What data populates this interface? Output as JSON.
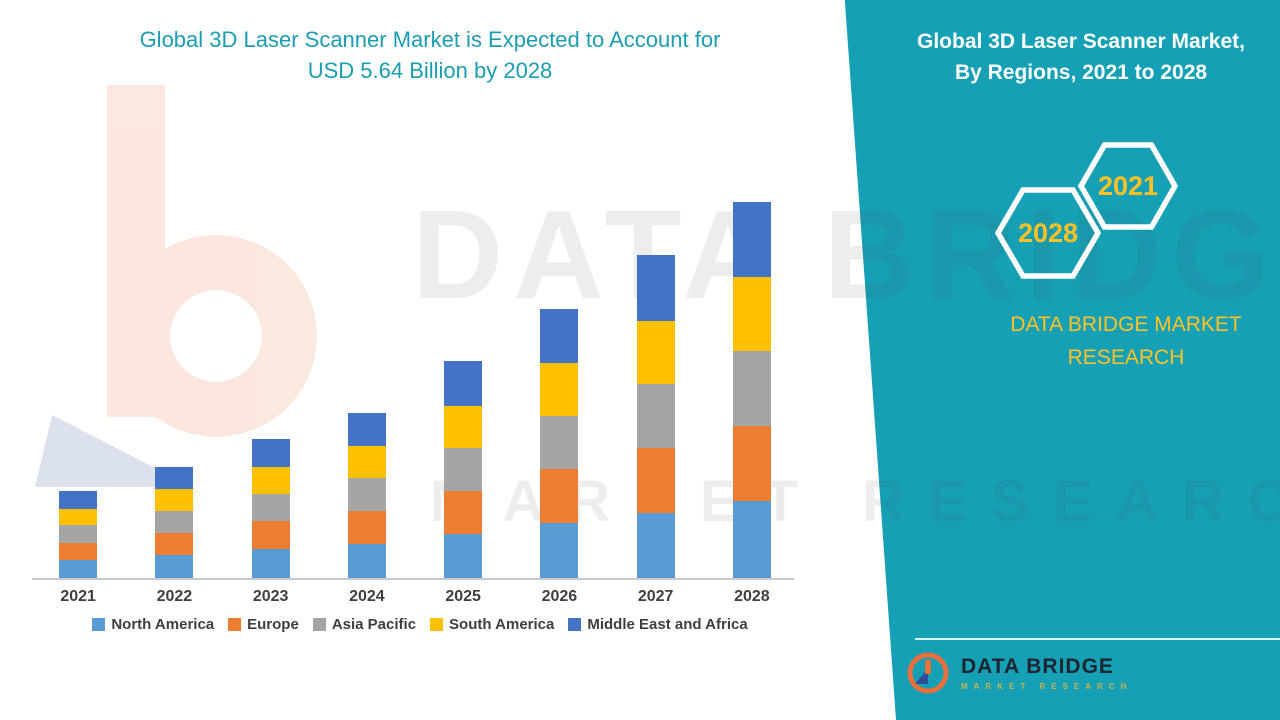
{
  "header": {
    "title_line1": "Global 3D Laser Scanner Market is Expected to Account for",
    "title_line2": "USD 5.64 Billion by 2028"
  },
  "side_panel": {
    "title_line1": "Global 3D Laser Scanner Market,",
    "title_line2": "By Regions, 2021 to 2028",
    "hex_2028": "2028",
    "hex_2021": "2021",
    "brand_line1": "DATA BRIDGE MARKET",
    "brand_line2": "RESEARCH",
    "footer_brand": "DATA BRIDGE",
    "footer_tagline": "MARKET RESEARCH"
  },
  "watermark": {
    "line1": "DATA BRIDGE",
    "line2": "MARKET RESEARCH"
  },
  "colors": {
    "teal": "#15A0B5",
    "accent_yellow": "#FFC226",
    "title_teal": "#1B9DB2",
    "axis_text": "#3F3F3F"
  },
  "chart_data": {
    "type": "bar",
    "stacked": true,
    "title": "Global 3D Laser Scanner Market, By Regions, 2021 to 2028",
    "units": "USD Billion",
    "categories": [
      "2021",
      "2022",
      "2023",
      "2024",
      "2025",
      "2026",
      "2027",
      "2028"
    ],
    "series": [
      {
        "name": "North America",
        "color": "#5B9BD5",
        "values": [
          0.27,
          0.34,
          0.43,
          0.51,
          0.66,
          0.82,
          0.98,
          1.15
        ]
      },
      {
        "name": "Europe",
        "color": "#ED7D31",
        "values": [
          0.26,
          0.34,
          0.42,
          0.5,
          0.65,
          0.81,
          0.97,
          1.13
        ]
      },
      {
        "name": "Asia Pacific",
        "color": "#A5A5A5",
        "values": [
          0.26,
          0.33,
          0.41,
          0.49,
          0.64,
          0.8,
          0.96,
          1.12
        ]
      },
      {
        "name": "South America",
        "color": "#FFC000",
        "values": [
          0.25,
          0.32,
          0.4,
          0.48,
          0.63,
          0.79,
          0.95,
          1.12
        ]
      },
      {
        "name": "Middle East and Africa",
        "color": "#4472C4",
        "values": [
          0.27,
          0.34,
          0.43,
          0.5,
          0.67,
          0.81,
          0.99,
          1.12
        ]
      }
    ],
    "totals": [
      1.31,
      1.67,
      2.09,
      2.48,
      3.25,
      4.03,
      4.85,
      5.64
    ],
    "ylim": [
      0,
      6
    ],
    "grid": false,
    "legend_position": "bottom",
    "x_axis_visible": true,
    "y_axis_visible": false
  }
}
